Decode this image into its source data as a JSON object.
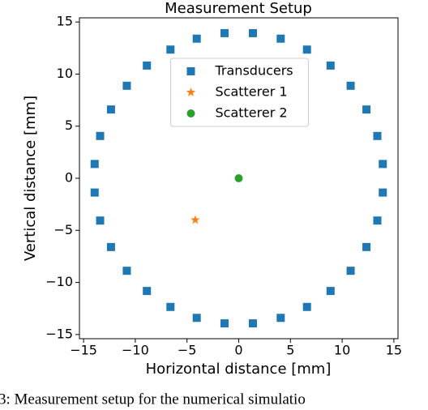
{
  "chart_data": {
    "type": "scatter",
    "title": "Measurement Setup",
    "xlabel": "Horizontal distance [mm]",
    "ylabel": "Vertical distance [mm]",
    "xlim": [
      -15.4,
      15.4
    ],
    "ylim": [
      -15.4,
      15.4
    ],
    "xticks": [
      {
        "value": -15,
        "label": "−15"
      },
      {
        "value": -10,
        "label": "−10"
      },
      {
        "value": -5,
        "label": "−5"
      },
      0,
      5,
      10,
      15
    ],
    "yticks": [
      {
        "value": -15,
        "label": "−15"
      },
      {
        "value": -10,
        "label": "−10"
      },
      {
        "value": -5,
        "label": "−5"
      },
      0,
      5,
      10,
      15
    ],
    "legend": "upper center",
    "series": [
      {
        "name": "Transducers",
        "color": "#1f77b4",
        "marker": "square",
        "x": [
          13.93,
          13.4,
          12.35,
          10.82,
          8.88,
          6.6,
          4.06,
          1.37,
          -1.37,
          -4.06,
          -6.6,
          -8.88,
          -10.82,
          -12.35,
          -13.4,
          -13.93,
          -13.93,
          -13.4,
          -12.35,
          -10.82,
          -8.88,
          -6.6,
          -4.06,
          -1.37,
          1.37,
          4.06,
          6.6,
          8.88,
          10.82,
          12.35,
          13.4,
          13.93
        ],
        "y": [
          1.37,
          4.06,
          6.6,
          8.88,
          10.82,
          12.35,
          13.4,
          13.93,
          13.93,
          13.4,
          12.35,
          10.82,
          8.88,
          6.6,
          4.06,
          1.37,
          -1.37,
          -4.06,
          -6.6,
          -8.88,
          -10.82,
          -12.35,
          -13.4,
          -13.93,
          -13.93,
          -13.4,
          -12.35,
          -10.82,
          -8.88,
          -6.6,
          -4.06,
          -1.37
        ]
      },
      {
        "name": "Scatterer 1",
        "color": "#ff7f0e",
        "marker": "star",
        "x": [
          -4.2
        ],
        "y": [
          -4.0
        ]
      },
      {
        "name": "Scatterer 2",
        "color": "#2ca02c",
        "marker": "circle",
        "x": [
          0
        ],
        "y": [
          0
        ]
      }
    ]
  },
  "caption": "3: Measurement setup for the numerical simulatio"
}
